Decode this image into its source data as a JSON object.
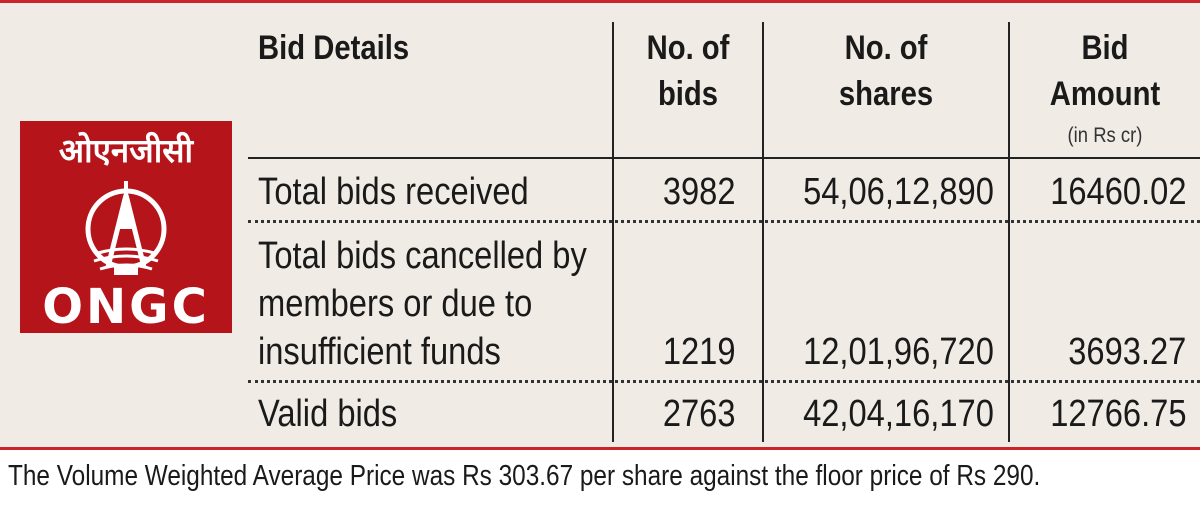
{
  "logo": {
    "hindi_text": "ओएनजीसी",
    "english_text": "ONGC",
    "color": "#b5141b",
    "emblem_icon": "ongc-rig-emblem"
  },
  "table": {
    "headers": {
      "details": "Bid Details",
      "bids_line1": "No. of",
      "bids_line2": "bids",
      "shares_line1": "No. of",
      "shares_line2": "shares",
      "amount_line1": "Bid",
      "amount_line2": "Amount",
      "amount_unit": "(in Rs cr)"
    },
    "rows": [
      {
        "label": [
          "Total bids received"
        ],
        "bids": "3982",
        "shares": "54,06,12,890",
        "amount": "16460.02"
      },
      {
        "label": [
          "Total bids cancelled by",
          "members or due to",
          "insufficient funds"
        ],
        "bids": "1219",
        "shares": "12,01,96,720",
        "amount": "3693.27"
      },
      {
        "label": [
          "Valid bids"
        ],
        "bids": "2763",
        "shares": "42,04,16,170",
        "amount": "12766.75"
      }
    ]
  },
  "footer": "The Volume Weighted Average Price was Rs 303.67 per share against the floor price of Rs 290.",
  "colors": {
    "accent": "#c8262c",
    "panel_bg": "#f0ebe4"
  }
}
